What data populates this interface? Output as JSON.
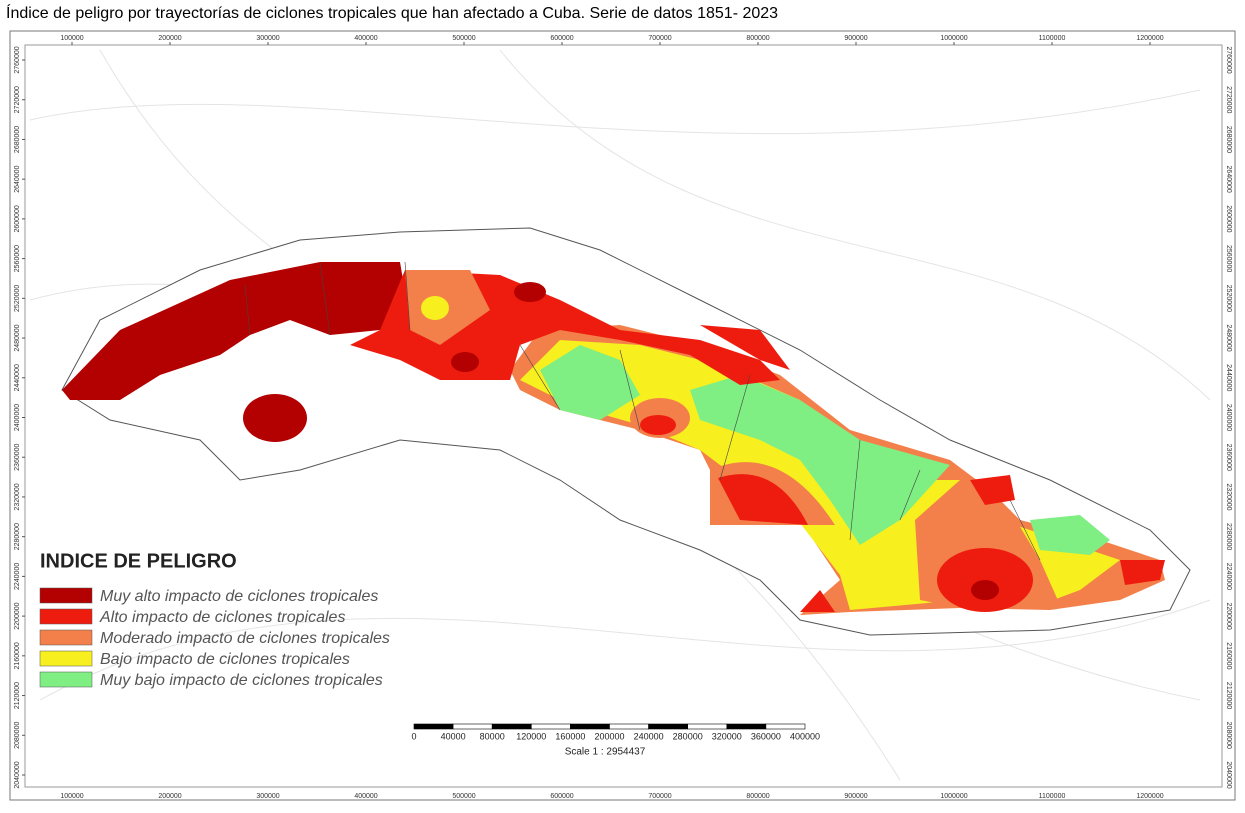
{
  "header": {
    "title": "Índice de peligro por trayectorías de ciclones tropicales que han afectado a Cuba. Serie  de datos 1851- 2023"
  },
  "map": {
    "xticks": [
      100000,
      200000,
      300000,
      400000,
      500000,
      600000,
      700000,
      800000,
      900000,
      1000000,
      1100000,
      1200000
    ],
    "yticks": [
      2040000,
      2080000,
      2120000,
      2160000,
      2200000,
      2240000,
      2280000,
      2320000,
      2360000,
      2400000,
      2440000,
      2480000,
      2520000,
      2560000,
      2600000,
      2640000,
      2680000,
      2720000,
      2760000
    ],
    "legend": {
      "title": "INDICE DE PELIGRO",
      "items": [
        {
          "label": "Muy alto impacto de ciclones tropicales",
          "color": "#b30000"
        },
        {
          "label": "Alto impacto de ciclones tropicales",
          "color": "#ee1c0e"
        },
        {
          "label": "Moderado impacto de ciclones tropicales",
          "color": "#f3804a"
        },
        {
          "label": "Bajo impacto de ciclones tropicales",
          "color": "#f7f01e"
        },
        {
          "label": "Muy bajo impacto de ciclones tropicales",
          "color": "#7fee83"
        }
      ]
    },
    "scale_bar": {
      "ticks": [
        0,
        40000,
        80000,
        120000,
        160000,
        200000,
        240000,
        280000,
        320000,
        360000,
        400000
      ],
      "text": "Scale 1 : 2954437"
    }
  }
}
